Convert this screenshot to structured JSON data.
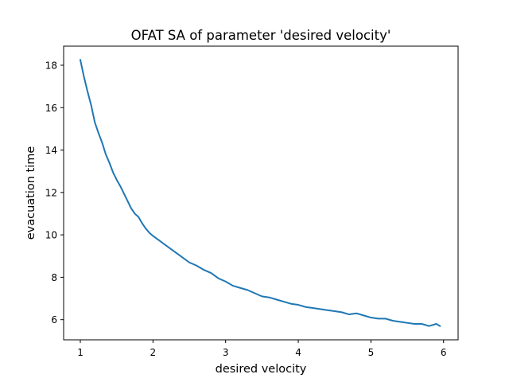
{
  "chart_data": {
    "type": "line",
    "title": "OFAT SA of parameter 'desired velocity'",
    "xlabel": "desired velocity",
    "ylabel": "evacuation time",
    "xlim": [
      0.77,
      6.2
    ],
    "ylim": [
      5.05,
      18.9
    ],
    "xticks": [
      1,
      2,
      3,
      4,
      5,
      6
    ],
    "yticks": [
      6,
      8,
      10,
      12,
      14,
      16,
      18
    ],
    "grid": false,
    "legend": "none",
    "line_color": "#1f77b4",
    "series": [
      {
        "x": [
          1.0,
          1.05,
          1.1,
          1.15,
          1.2,
          1.25,
          1.3,
          1.35,
          1.4,
          1.45,
          1.5,
          1.55,
          1.6,
          1.65,
          1.7,
          1.75,
          1.8,
          1.85,
          1.9,
          1.95,
          2.0,
          2.1,
          2.2,
          2.3,
          2.4,
          2.5,
          2.6,
          2.7,
          2.8,
          2.9,
          3.0,
          3.1,
          3.2,
          3.3,
          3.4,
          3.5,
          3.6,
          3.7,
          3.8,
          3.9,
          4.0,
          4.1,
          4.2,
          4.3,
          4.4,
          4.5,
          4.6,
          4.7,
          4.8,
          4.9,
          5.0,
          5.1,
          5.2,
          5.3,
          5.4,
          5.5,
          5.6,
          5.7,
          5.8,
          5.9,
          5.95
        ],
        "values": [
          18.25,
          17.45,
          16.75,
          16.1,
          15.3,
          14.8,
          14.35,
          13.8,
          13.4,
          12.95,
          12.6,
          12.3,
          11.95,
          11.6,
          11.25,
          11.0,
          10.85,
          10.55,
          10.3,
          10.1,
          9.95,
          9.7,
          9.45,
          9.2,
          8.95,
          8.7,
          8.55,
          8.35,
          8.2,
          7.95,
          7.8,
          7.6,
          7.5,
          7.4,
          7.25,
          7.1,
          7.05,
          6.95,
          6.85,
          6.75,
          6.7,
          6.6,
          6.55,
          6.5,
          6.45,
          6.4,
          6.35,
          6.25,
          6.3,
          6.2,
          6.1,
          6.05,
          6.05,
          5.95,
          5.9,
          5.85,
          5.8,
          5.8,
          5.7,
          5.8,
          5.7
        ]
      }
    ]
  }
}
